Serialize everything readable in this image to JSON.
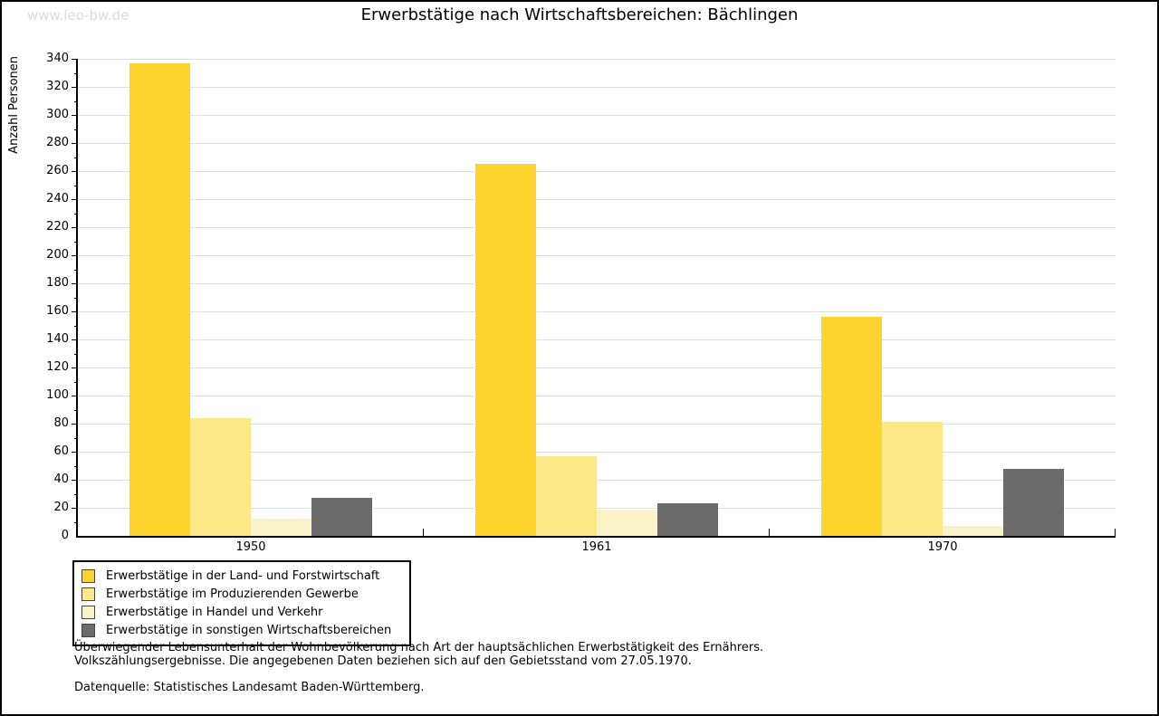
{
  "watermark": "www.leo-bw.de",
  "chart_data": {
    "type": "bar",
    "title": "Erwerbstätige nach Wirtschaftsbereichen: Bächlingen",
    "ylabel": "Anzahl Personen",
    "xlabel": "",
    "categories": [
      "1950",
      "1961",
      "1970"
    ],
    "series": [
      {
        "name": "Erwerbstätige in der Land- und Forstwirtschaft",
        "color": "#FDD32D",
        "values": [
          337,
          265,
          156
        ]
      },
      {
        "name": "Erwerbstätige im Produzierenden Gewerbe",
        "color": "#FBE886",
        "values": [
          84,
          57,
          81
        ]
      },
      {
        "name": "Erwerbstätige in Handel und Verkehr",
        "color": "#FAF2C8",
        "values": [
          12,
          19,
          7
        ]
      },
      {
        "name": "Erwerbstätige in sonstigen Wirtschaftsbereichen",
        "color": "#6B6B6B",
        "values": [
          27,
          23,
          48
        ]
      }
    ],
    "ylim": [
      0,
      340
    ],
    "ytick_step": 20,
    "ytick_minor_step": 10,
    "grid": true,
    "legend_position": "bottom-left"
  },
  "footnotes": {
    "line1": "Überwiegender Lebensunterhalt der Wohnbevölkerung nach Art der hauptsächlichen Erwerbstätigkeit des Ernährers.",
    "line2": "Volkszählungsergebnisse. Die angegebenen Daten beziehen sich auf den Gebietsstand vom 27.05.1970.",
    "source": "Datenquelle: Statistisches Landesamt Baden-Württemberg."
  }
}
